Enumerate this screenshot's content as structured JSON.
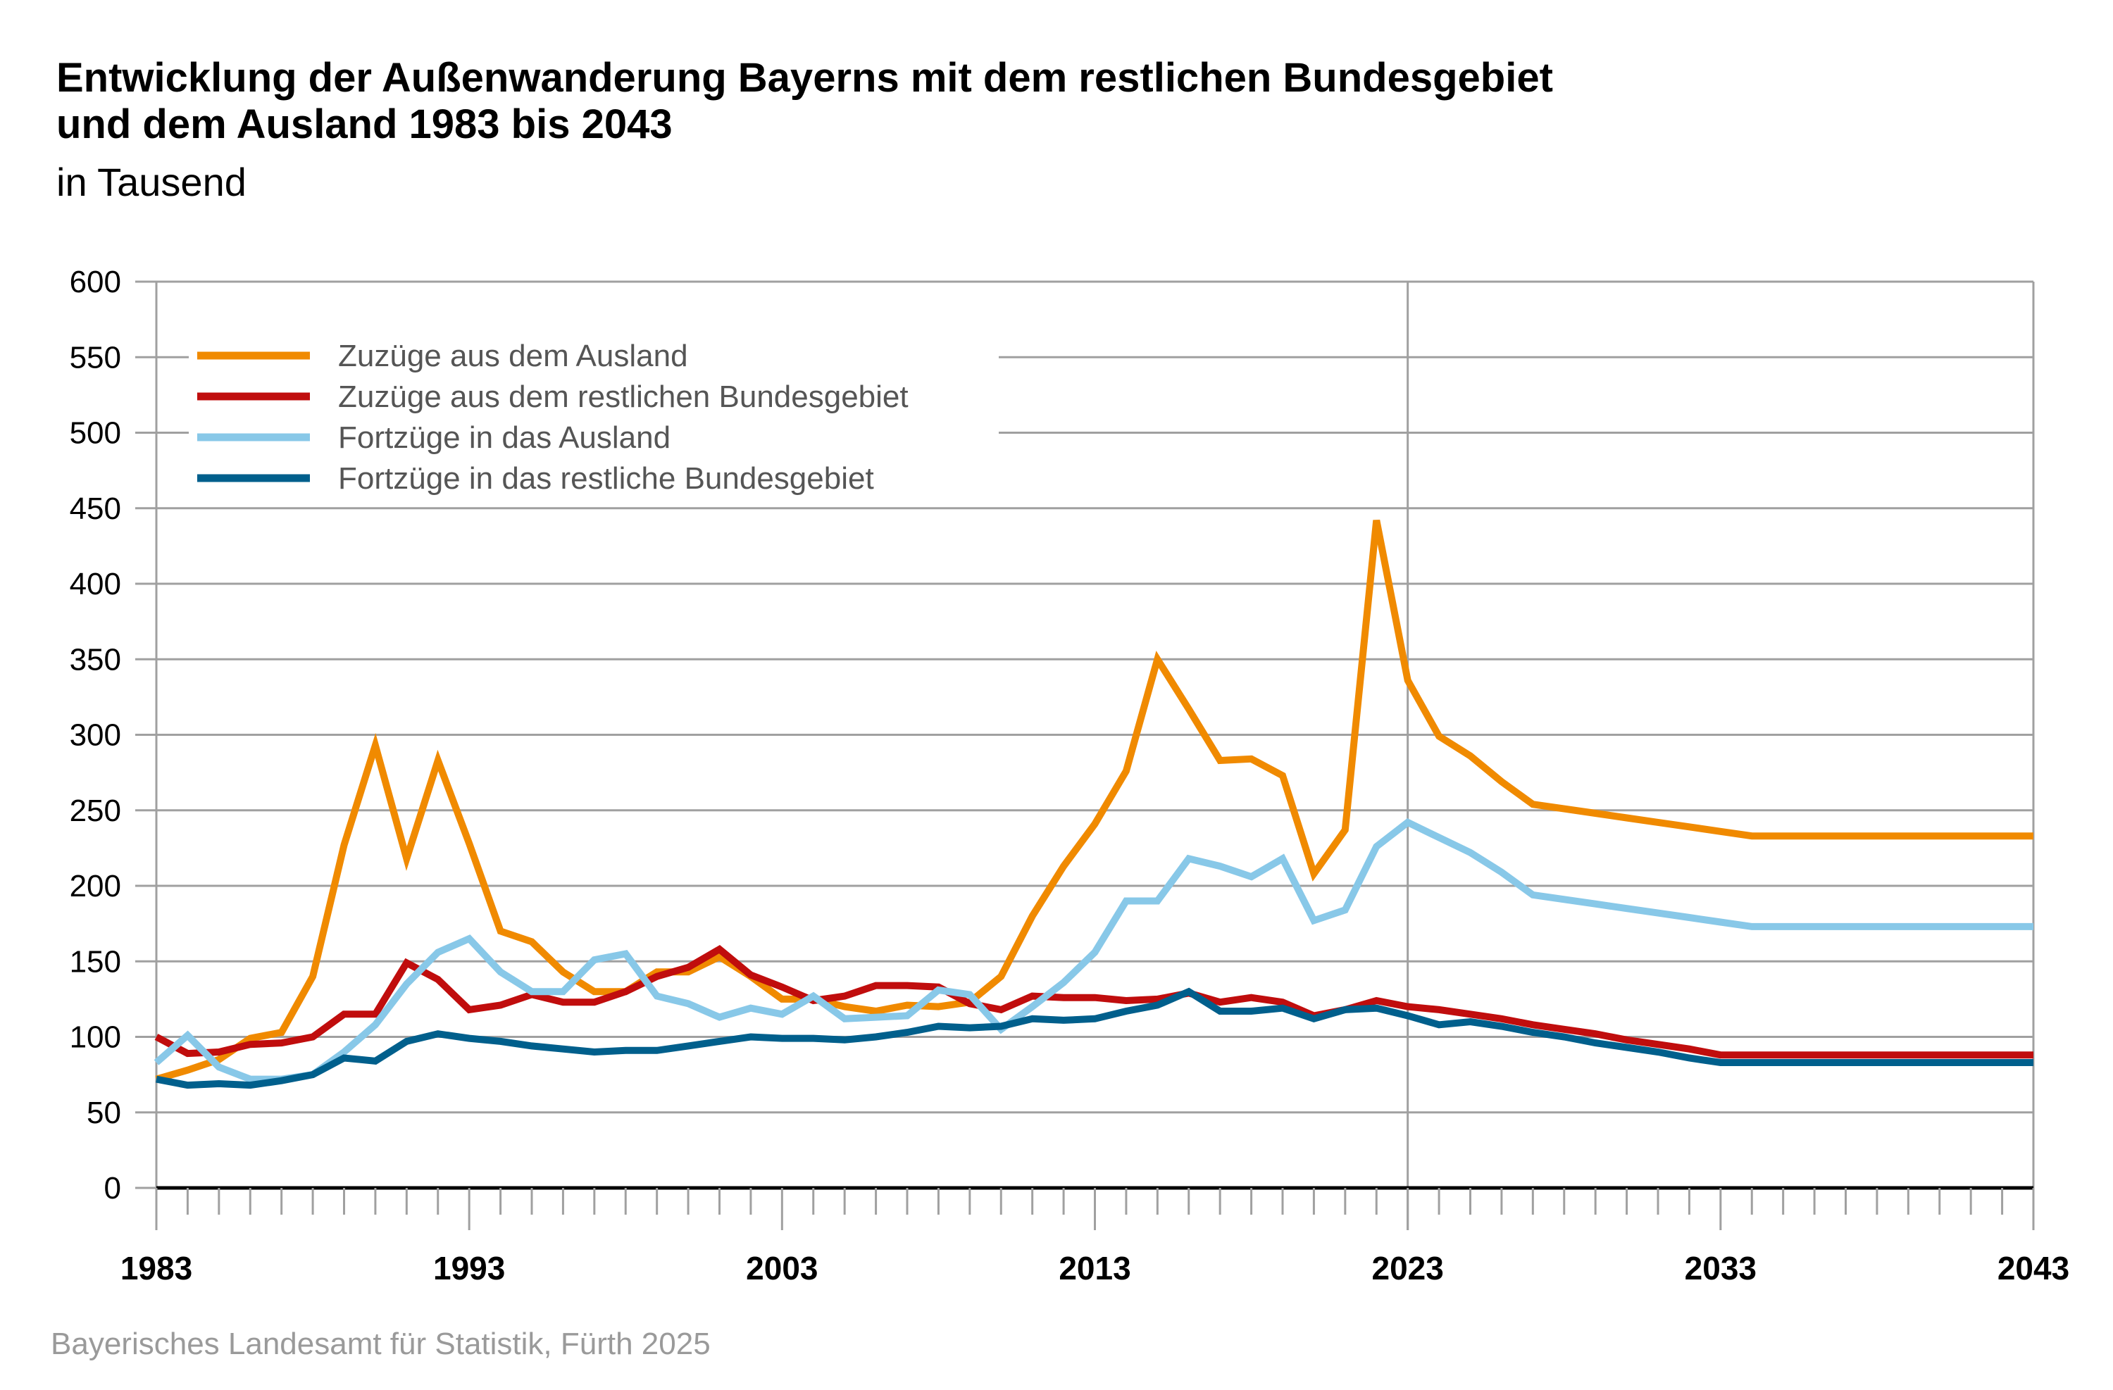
{
  "chart_data": {
    "type": "line",
    "title": "Entwicklung der Außenwanderung Bayerns mit dem restlichen Bundesgebiet und dem Ausland 1983 bis 2043",
    "title_lines": [
      "Entwicklung der Außenwanderung Bayerns mit dem restlichen Bundesgebiet",
      "und dem Ausland 1983 bis 2043"
    ],
    "subtitle": "in Tausend",
    "xlabel": "",
    "ylabel": "",
    "xlim": [
      1983,
      2043
    ],
    "ylim": [
      0,
      600
    ],
    "yticks": [
      0,
      50,
      100,
      150,
      200,
      250,
      300,
      350,
      400,
      450,
      500,
      550,
      600
    ],
    "xticks": [
      1983,
      1993,
      2003,
      2013,
      2023,
      2033,
      2043
    ],
    "reference_line_x": 2023,
    "grid": true,
    "legend_position": "top-left",
    "x": [
      1983,
      1984,
      1985,
      1986,
      1987,
      1988,
      1989,
      1990,
      1991,
      1992,
      1993,
      1994,
      1995,
      1996,
      1997,
      1998,
      1999,
      2000,
      2001,
      2002,
      2003,
      2004,
      2005,
      2006,
      2007,
      2008,
      2009,
      2010,
      2011,
      2012,
      2013,
      2014,
      2015,
      2016,
      2017,
      2018,
      2019,
      2020,
      2021,
      2022,
      2023,
      2024,
      2025,
      2026,
      2027,
      2028,
      2029,
      2030,
      2031,
      2032,
      2033,
      2034,
      2035,
      2036,
      2037,
      2038,
      2039,
      2040,
      2041,
      2042,
      2043
    ],
    "series": [
      {
        "name": "Zuzüge aus dem Ausland",
        "color": "#f08a00",
        "values": [
          72,
          78,
          85,
          99,
          103,
          140,
          227,
          293,
          218,
          283,
          228,
          170,
          163,
          143,
          130,
          130,
          143,
          143,
          153,
          140,
          125,
          125,
          120,
          117,
          121,
          120,
          123,
          140,
          180,
          213,
          241,
          276,
          350,
          317,
          283,
          284,
          273,
          208,
          237,
          442,
          336,
          299,
          286,
          269,
          254,
          251,
          248,
          245,
          242,
          239,
          236,
          233,
          233,
          233,
          233,
          233,
          233,
          233,
          233,
          233,
          233
        ]
      },
      {
        "name": "Zuzüge aus dem restlichen Bundesgebiet",
        "color": "#c00d0d",
        "values": [
          100,
          89,
          90,
          95,
          96,
          100,
          115,
          115,
          149,
          138,
          118,
          121,
          128,
          123,
          123,
          130,
          140,
          146,
          158,
          141,
          133,
          124,
          127,
          134,
          134,
          133,
          122,
          118,
          127,
          126,
          126,
          124,
          125,
          129,
          123,
          126,
          123,
          114,
          118,
          124,
          120,
          118,
          115,
          112,
          108,
          105,
          102,
          98,
          95,
          92,
          88,
          88,
          88,
          88,
          88,
          88,
          88,
          88,
          88,
          88,
          88
        ]
      },
      {
        "name": "Fortzüge in das Ausland",
        "color": "#88c8e8",
        "values": [
          83,
          101,
          80,
          72,
          72,
          75,
          90,
          108,
          135,
          156,
          165,
          143,
          130,
          130,
          151,
          155,
          127,
          122,
          113,
          119,
          115,
          127,
          112,
          113,
          114,
          131,
          128,
          105,
          120,
          136,
          156,
          190,
          190,
          218,
          213,
          206,
          218,
          177,
          184,
          226,
          242,
          232,
          222,
          209,
          194,
          191,
          188,
          185,
          182,
          179,
          176,
          173,
          173,
          173,
          173,
          173,
          173,
          173,
          173,
          173,
          173
        ]
      },
      {
        "name": "Fortzüge in das restliche Bundesgebiet",
        "color": "#005f8c",
        "values": [
          72,
          68,
          69,
          68,
          71,
          75,
          86,
          84,
          97,
          102,
          99,
          97,
          94,
          92,
          90,
          91,
          91,
          94,
          97,
          100,
          99,
          99,
          98,
          100,
          103,
          107,
          106,
          107,
          112,
          111,
          112,
          117,
          121,
          130,
          117,
          117,
          119,
          112,
          118,
          119,
          114,
          108,
          110,
          107,
          103,
          100,
          96,
          93,
          90,
          86,
          83,
          83,
          83,
          83,
          83,
          83,
          83,
          83,
          83,
          83,
          83
        ]
      }
    ]
  },
  "footer": "Bayerisches Landesamt für Statistik, Fürth 2025"
}
